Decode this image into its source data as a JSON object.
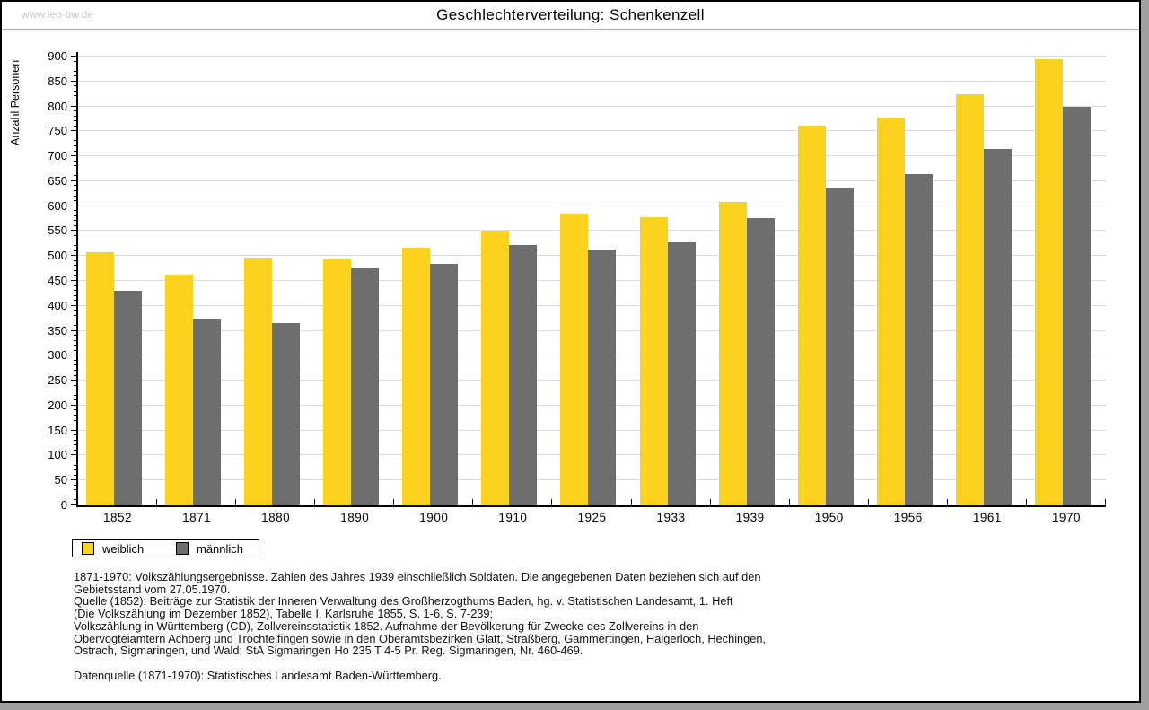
{
  "window": {
    "watermark": "www.leo-bw.de",
    "title": "Geschlechterverteilung: Schenkenzell"
  },
  "chart_data": {
    "type": "bar",
    "title": "Geschlechterverteilung: Schenkenzell",
    "xlabel": "",
    "ylabel": "Anzahl Personen",
    "ylim": [
      0,
      900
    ],
    "ytick_step": 50,
    "yminor_step": 10,
    "grid": true,
    "legend_position": "bottom-left",
    "categories": [
      "1852",
      "1871",
      "1880",
      "1890",
      "1900",
      "1910",
      "1925",
      "1933",
      "1939",
      "1950",
      "1956",
      "1961",
      "1970"
    ],
    "series": [
      {
        "name": "weiblich",
        "color": "#FCD21F",
        "values": [
          507,
          463,
          497,
          495,
          516,
          550,
          585,
          578,
          609,
          762,
          778,
          824,
          895
        ]
      },
      {
        "name": "männlich",
        "color": "#6E6E6E",
        "values": [
          430,
          374,
          366,
          475,
          484,
          522,
          513,
          528,
          576,
          635,
          665,
          714,
          799
        ]
      }
    ]
  },
  "footnotes": {
    "lines": [
      "1871-1970: Volkszählungsergebnisse. Zahlen des Jahres 1939 einschließlich Soldaten. Die angegebenen Daten beziehen sich auf den",
      "Gebietsstand vom 27.05.1970.",
      "Quelle (1852): Beiträge zur Statistik der Inneren Verwaltung des Großherzogthums Baden, hg. v. Statistischen Landesamt, 1. Heft",
      "(Die Volkszählung im Dezember 1852), Tabelle I, Karlsruhe 1855, S. 1-6, S. 7-239;",
      "Volkszählung in Württemberg (CD), Zollvereinsstatistik 1852. Aufnahme der Bevölkerung für Zwecke des Zollvereins in den",
      "Obervogteiämtern Achberg und Trochtelfingen sowie in den Oberamtsbezirken Glatt, Straßberg, Gammertingen, Haigerloch, Hechingen,",
      "Ostrach, Sigmaringen, und Wald; StA Sigmaringen Ho 235 T 4-5 Pr. Reg. Sigmaringen, Nr. 460-469."
    ],
    "datasource": "Datenquelle (1871-1970): Statistisches Landesamt Baden-Württemberg."
  },
  "colors": {
    "weiblich": "#FCD21F",
    "männlich": "#6E6E6E",
    "gridline": "#DCDCDC",
    "axis": "#000000",
    "watermark": "#C8C8C8",
    "background": "#FFFFFF"
  }
}
